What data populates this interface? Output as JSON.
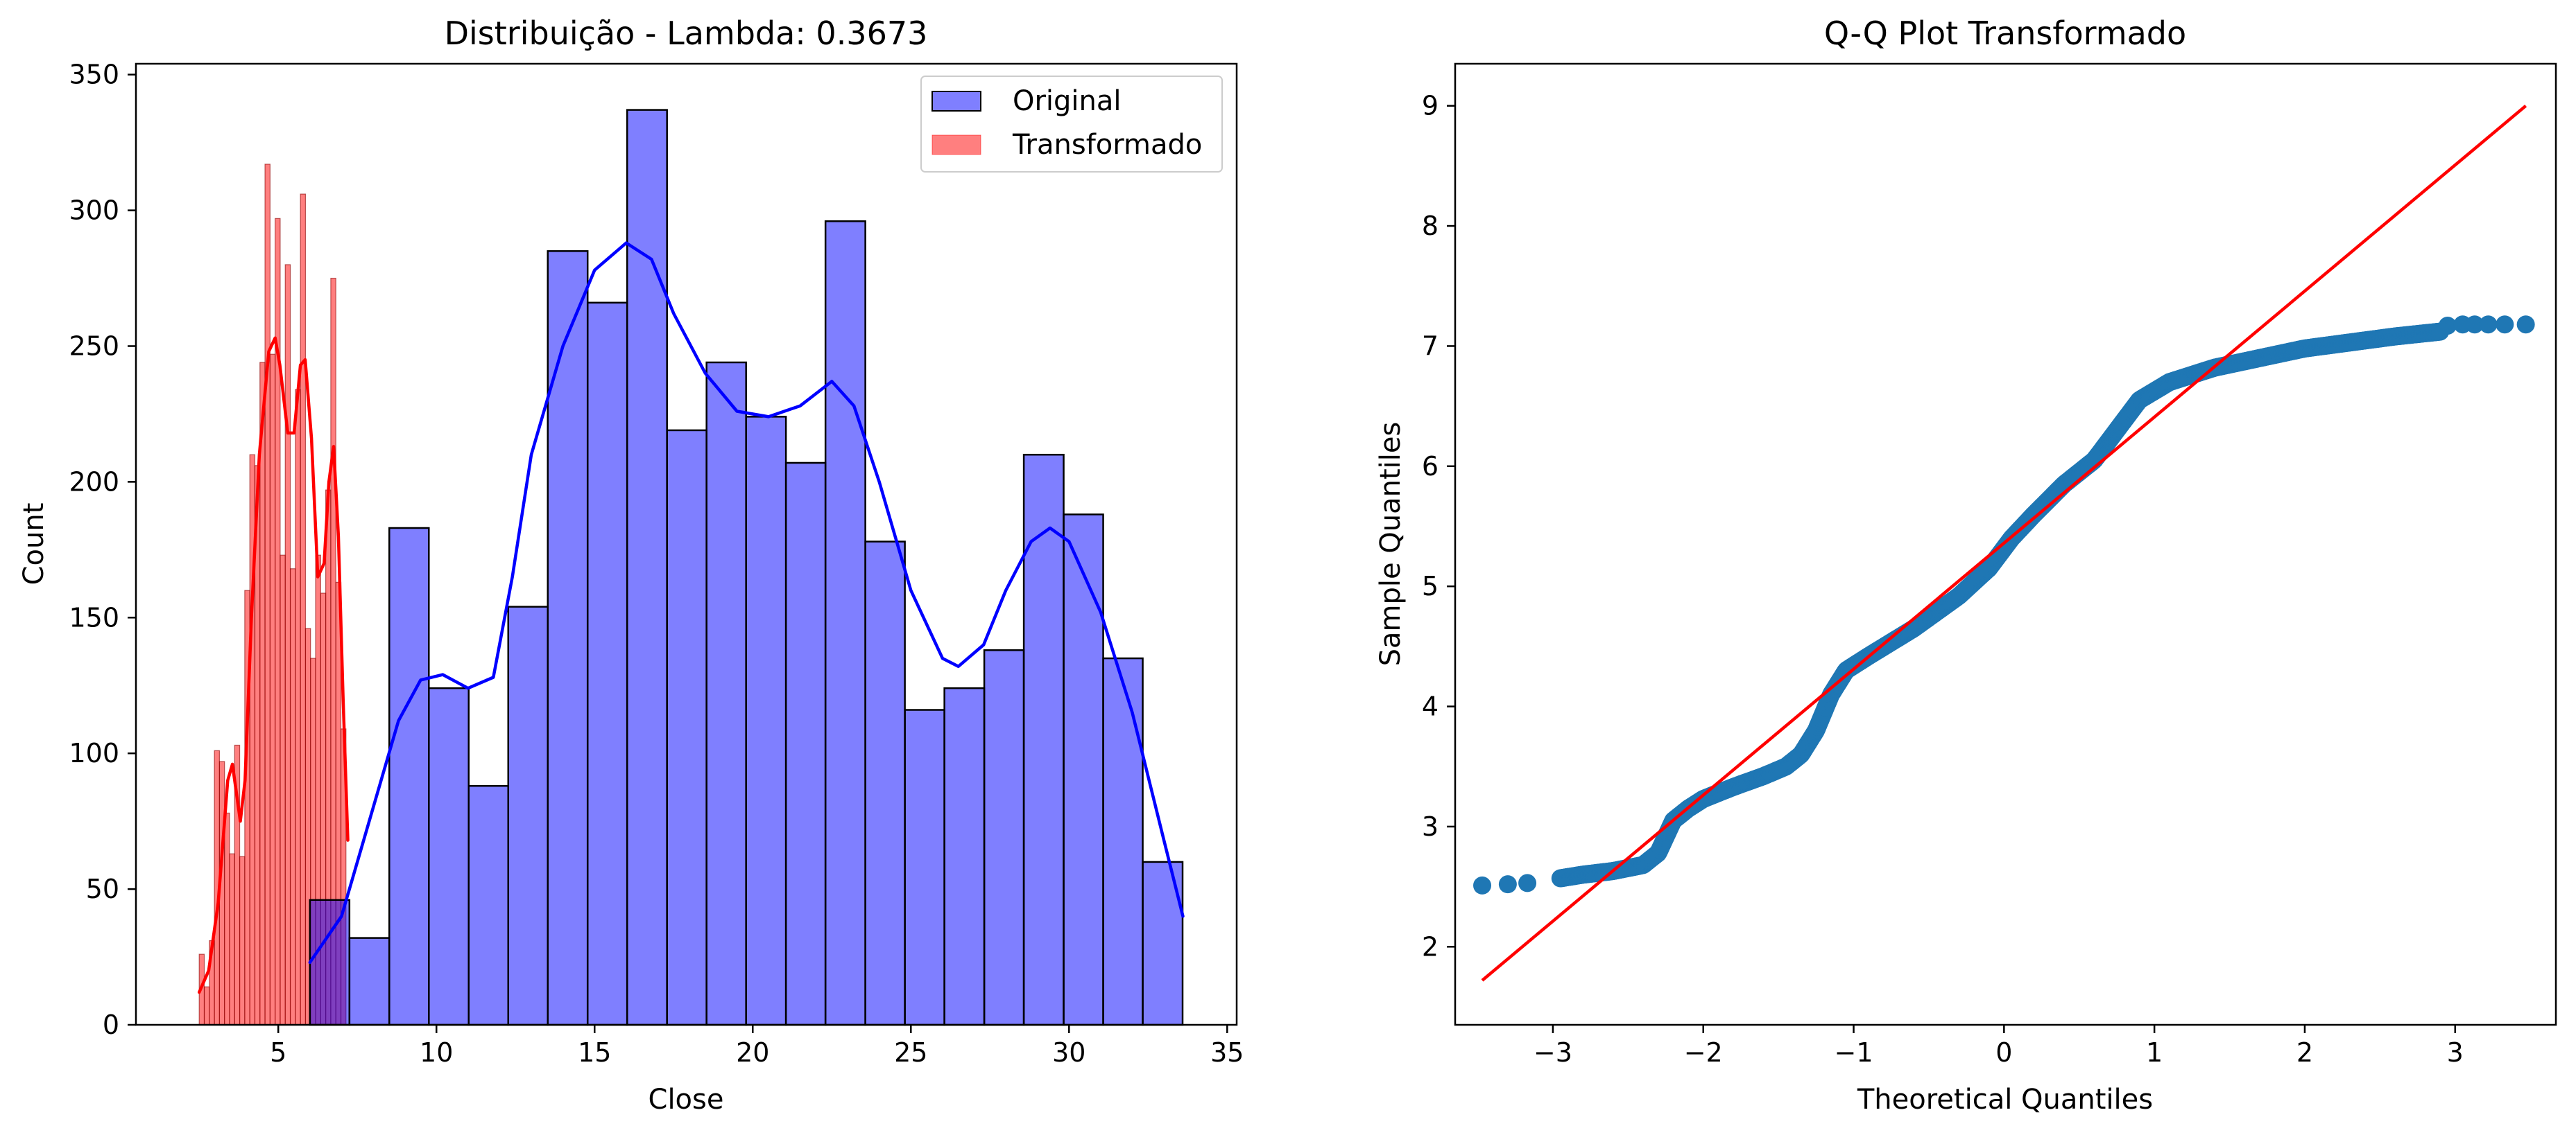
{
  "chart_data": [
    {
      "type": "histogram",
      "title": "Distribuição - Lambda: 0.3673",
      "xlabel": "Close",
      "ylabel": "Count",
      "xlim": [
        0.5,
        35.3
      ],
      "ylim": [
        0,
        354
      ],
      "x_ticks": [
        5,
        10,
        15,
        20,
        25,
        30,
        35
      ],
      "y_ticks": [
        0,
        50,
        100,
        150,
        200,
        250,
        300,
        350
      ],
      "grid": false,
      "legend_position": "top-right",
      "series": [
        {
          "name": "Original",
          "color": "#0000ff",
          "fill_opacity": 0.5,
          "kde_color": "#0000ff",
          "bin_edges": [
            6.0,
            7.25,
            8.51,
            9.76,
            11.02,
            12.27,
            13.52,
            14.78,
            16.03,
            17.29,
            18.54,
            19.79,
            21.05,
            22.3,
            23.56,
            24.81,
            26.06,
            27.32,
            28.57,
            29.83,
            31.08,
            32.33,
            33.59
          ],
          "counts": [
            46,
            32,
            183,
            124,
            88,
            154,
            285,
            266,
            337,
            219,
            244,
            224,
            207,
            296,
            178,
            116,
            124,
            138,
            210,
            188,
            135,
            60
          ],
          "kde": [
            [
              6.0,
              23
            ],
            [
              7.0,
              40
            ],
            [
              8.0,
              80
            ],
            [
              8.8,
              112
            ],
            [
              9.5,
              127
            ],
            [
              10.2,
              129
            ],
            [
              11.0,
              124
            ],
            [
              11.8,
              128
            ],
            [
              12.4,
              165
            ],
            [
              13.0,
              210
            ],
            [
              14.0,
              250
            ],
            [
              15.0,
              278
            ],
            [
              16.0,
              288
            ],
            [
              16.8,
              282
            ],
            [
              17.5,
              262
            ],
            [
              18.5,
              240
            ],
            [
              19.5,
              226
            ],
            [
              20.5,
              224
            ],
            [
              21.5,
              228
            ],
            [
              22.5,
              237
            ],
            [
              23.2,
              228
            ],
            [
              24.0,
              200
            ],
            [
              25.0,
              160
            ],
            [
              26.0,
              135
            ],
            [
              26.5,
              132
            ],
            [
              27.3,
              140
            ],
            [
              28.0,
              160
            ],
            [
              28.8,
              178
            ],
            [
              29.4,
              183
            ],
            [
              30.0,
              178
            ],
            [
              31.0,
              152
            ],
            [
              32.0,
              115
            ],
            [
              33.0,
              68
            ],
            [
              33.6,
              40
            ]
          ]
        },
        {
          "name": "Transformado",
          "color": "#ff0000",
          "fill_opacity": 0.5,
          "kde_color": "#ff0000",
          "bin_edges": [
            2.5,
            2.66,
            2.82,
            2.98,
            3.14,
            3.3,
            3.46,
            3.62,
            3.78,
            3.94,
            4.1,
            4.26,
            4.42,
            4.58,
            4.74,
            4.9,
            5.06,
            5.22,
            5.38,
            5.54,
            5.7,
            5.86,
            6.02,
            6.18,
            6.34,
            6.5,
            6.66,
            6.82,
            6.98,
            7.14
          ],
          "counts": [
            26,
            14,
            31,
            101,
            97,
            78,
            63,
            103,
            62,
            160,
            210,
            206,
            244,
            317,
            247,
            297,
            173,
            280,
            168,
            234,
            306,
            146,
            135,
            173,
            159,
            197,
            275,
            163,
            109
          ],
          "kde": [
            [
              2.5,
              12
            ],
            [
              2.8,
              20
            ],
            [
              3.1,
              45
            ],
            [
              3.4,
              90
            ],
            [
              3.55,
              96
            ],
            [
              3.8,
              75
            ],
            [
              3.95,
              90
            ],
            [
              4.15,
              150
            ],
            [
              4.4,
              210
            ],
            [
              4.7,
              248
            ],
            [
              4.9,
              253
            ],
            [
              5.05,
              243
            ],
            [
              5.3,
              218
            ],
            [
              5.5,
              218
            ],
            [
              5.7,
              243
            ],
            [
              5.85,
              245
            ],
            [
              6.05,
              216
            ],
            [
              6.25,
              165
            ],
            [
              6.45,
              170
            ],
            [
              6.6,
              200
            ],
            [
              6.75,
              213
            ],
            [
              6.9,
              180
            ],
            [
              7.05,
              120
            ],
            [
              7.2,
              68
            ]
          ]
        }
      ]
    },
    {
      "type": "scatter",
      "title": "Q-Q Plot Transformado",
      "xlabel": "Theoretical Quantiles",
      "ylabel": "Sample Quantiles",
      "xlim": [
        -3.65,
        3.67
      ],
      "ylim": [
        1.35,
        9.35
      ],
      "x_ticks": [
        -3,
        -2,
        -1,
        0,
        1,
        2,
        3
      ],
      "x_tick_labels": [
        "−3",
        "−2",
        "−1",
        "0",
        "1",
        "2",
        "3"
      ],
      "y_ticks": [
        2,
        3,
        4,
        5,
        6,
        7,
        8,
        9
      ],
      "grid": false,
      "point_color": "#1f77b4",
      "line_color": "#ff0000",
      "reference_line": [
        [
          -3.47,
          1.72
        ],
        [
          3.47,
          9.0
        ]
      ],
      "quantile_curve": [
        [
          -3.47,
          2.51
        ],
        [
          -3.2,
          2.53
        ],
        [
          -3.0,
          2.56
        ],
        [
          -2.8,
          2.6
        ],
        [
          -2.6,
          2.63
        ],
        [
          -2.4,
          2.68
        ],
        [
          -2.3,
          2.78
        ],
        [
          -2.2,
          3.05
        ],
        [
          -2.1,
          3.15
        ],
        [
          -2.0,
          3.23
        ],
        [
          -1.8,
          3.33
        ],
        [
          -1.6,
          3.42
        ],
        [
          -1.45,
          3.5
        ],
        [
          -1.35,
          3.6
        ],
        [
          -1.25,
          3.8
        ],
        [
          -1.15,
          4.1
        ],
        [
          -1.05,
          4.3
        ],
        [
          -0.9,
          4.42
        ],
        [
          -0.6,
          4.65
        ],
        [
          -0.3,
          4.92
        ],
        [
          -0.1,
          5.15
        ],
        [
          0.05,
          5.4
        ],
        [
          0.2,
          5.6
        ],
        [
          0.4,
          5.85
        ],
        [
          0.6,
          6.05
        ],
        [
          0.75,
          6.3
        ],
        [
          0.9,
          6.55
        ],
        [
          1.1,
          6.7
        ],
        [
          1.4,
          6.82
        ],
        [
          1.7,
          6.9
        ],
        [
          2.0,
          6.98
        ],
        [
          2.3,
          7.03
        ],
        [
          2.6,
          7.08
        ],
        [
          2.9,
          7.12
        ],
        [
          3.1,
          7.15
        ],
        [
          3.3,
          7.17
        ],
        [
          3.47,
          7.18
        ]
      ],
      "outlier_points": [
        [
          -3.47,
          2.51
        ],
        [
          -3.3,
          2.52
        ],
        [
          -3.17,
          2.53
        ],
        [
          2.95,
          7.17
        ],
        [
          3.05,
          7.18
        ],
        [
          3.13,
          7.18
        ],
        [
          3.22,
          7.18
        ],
        [
          3.33,
          7.18
        ],
        [
          3.47,
          7.18
        ]
      ]
    }
  ]
}
